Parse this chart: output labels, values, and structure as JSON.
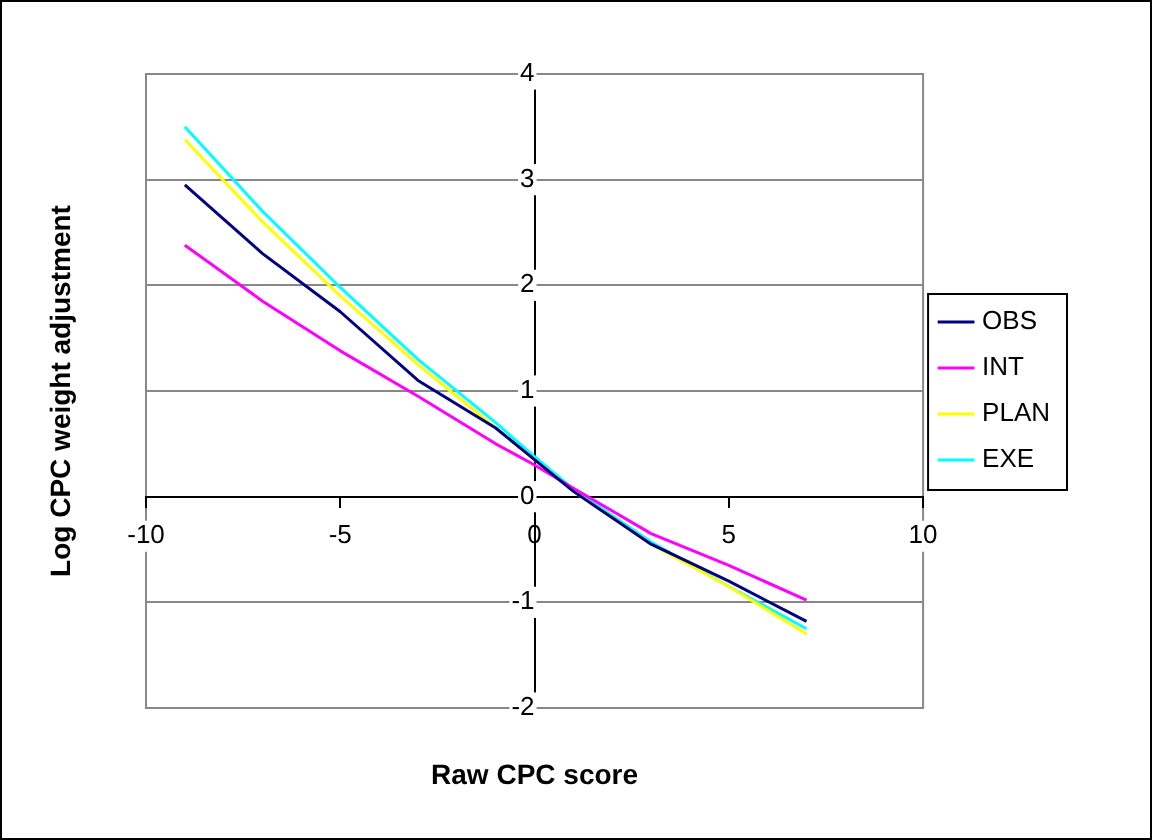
{
  "chart_data": {
    "type": "line",
    "xlabel": "Raw CPC score",
    "ylabel": "Log CPC weight adjustment",
    "xlim": [
      -10,
      10
    ],
    "xticks": [
      -10,
      -5,
      0,
      5,
      10
    ],
    "ylim": [
      -2,
      4
    ],
    "yticks": [
      -2,
      -1,
      0,
      1,
      2,
      3,
      4
    ],
    "grid": "y",
    "legend": "right",
    "marker": "none",
    "line_style": "solid",
    "series": [
      {
        "name": "OBS",
        "color": "#000080",
        "x": [
          -9,
          -7,
          -5,
          -3,
          -1,
          0,
          1,
          2,
          3,
          5,
          7
        ],
        "values": [
          2.95,
          2.3,
          1.75,
          1.1,
          0.65,
          0.35,
          0.05,
          -0.2,
          -0.45,
          -0.8,
          -1.18
        ]
      },
      {
        "name": "INT",
        "color": "#ff00ff",
        "x": [
          -9,
          -7,
          -5,
          -3,
          -1,
          0,
          1,
          3,
          5,
          7
        ],
        "values": [
          2.38,
          1.85,
          1.38,
          0.95,
          0.5,
          0.3,
          0.08,
          -0.35,
          -0.65,
          -0.98
        ]
      },
      {
        "name": "PLAN",
        "color": "#ffff00",
        "x": [
          -9,
          -7,
          -5,
          -3,
          -1,
          0,
          1,
          3,
          5,
          7
        ],
        "values": [
          3.38,
          2.6,
          1.9,
          1.25,
          0.65,
          0.35,
          0.05,
          -0.45,
          -0.85,
          -1.3
        ]
      },
      {
        "name": "EXE",
        "color": "#00ffff",
        "x": [
          -9,
          -7,
          -5,
          -3,
          -1,
          0,
          1,
          3,
          5,
          7
        ],
        "values": [
          3.5,
          2.7,
          1.98,
          1.3,
          0.7,
          0.38,
          0.07,
          -0.43,
          -0.85,
          -1.25
        ]
      }
    ]
  }
}
